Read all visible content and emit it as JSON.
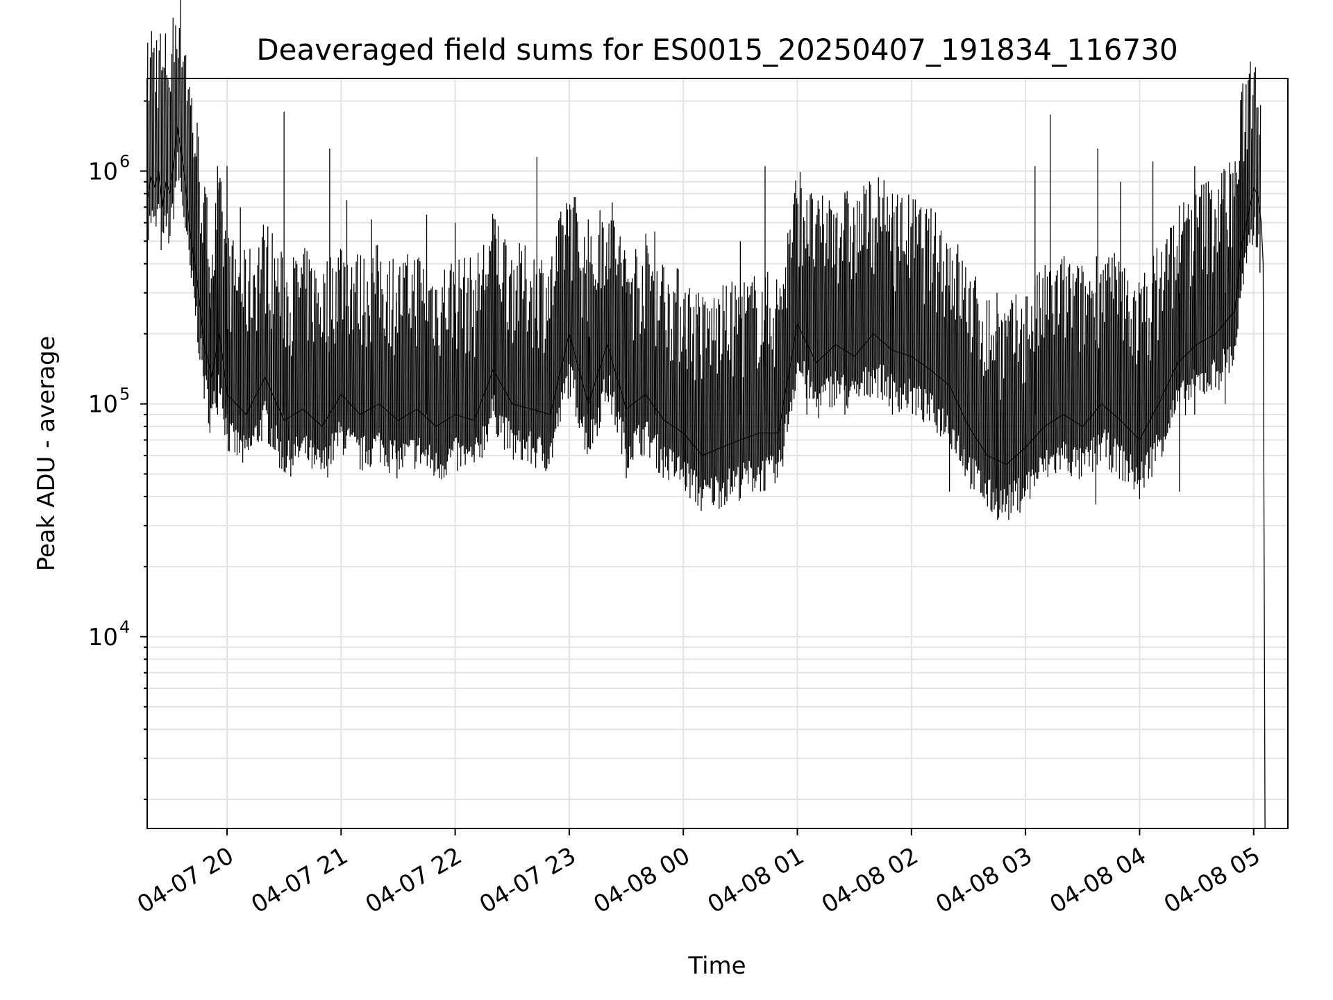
{
  "chart_data": {
    "type": "line",
    "title": "Deaveraged field sums for ES0015_20250407_191834_116730",
    "xlabel": "Time",
    "ylabel": "Peak ADU - average",
    "yscale": "log",
    "ylim": [
      1500,
      2500000
    ],
    "xlim": [
      "2025-04-07 19:18",
      "2025-04-08 05:18"
    ],
    "x_ticks": [
      {
        "value": "2025-04-07 20:00",
        "label": "04-07 20"
      },
      {
        "value": "2025-04-07 21:00",
        "label": "04-07 21"
      },
      {
        "value": "2025-04-07 22:00",
        "label": "04-07 22"
      },
      {
        "value": "2025-04-07 23:00",
        "label": "04-07 23"
      },
      {
        "value": "2025-04-08 00:00",
        "label": "04-08 00"
      },
      {
        "value": "2025-04-08 01:00",
        "label": "04-08 01"
      },
      {
        "value": "2025-04-08 02:00",
        "label": "04-08 02"
      },
      {
        "value": "2025-04-08 03:00",
        "label": "04-08 03"
      },
      {
        "value": "2025-04-08 04:00",
        "label": "04-08 04"
      },
      {
        "value": "2025-04-08 05:00",
        "label": "04-08 05"
      }
    ],
    "y_ticks": [
      {
        "value": 10000,
        "base": "10",
        "exp": "4"
      },
      {
        "value": 100000,
        "base": "10",
        "exp": "5"
      },
      {
        "value": 1000000,
        "base": "10",
        "exp": "6"
      }
    ],
    "grid": true,
    "legend": false,
    "line_color": "#000000",
    "series": [
      {
        "x": [
          "2025-04-07 19:18",
          "2025-04-07 19:20",
          "2025-04-07 19:22",
          "2025-04-07 19:24",
          "2025-04-07 19:26",
          "2025-04-07 19:28",
          "2025-04-07 19:30",
          "2025-04-07 19:32",
          "2025-04-07 19:34",
          "2025-04-07 19:36",
          "2025-04-07 19:38",
          "2025-04-07 19:40",
          "2025-04-07 19:44",
          "2025-04-07 19:48",
          "2025-04-07 19:52",
          "2025-04-07 19:56",
          "2025-04-07 20:00",
          "2025-04-07 20:10",
          "2025-04-07 20:20",
          "2025-04-07 20:30",
          "2025-04-07 20:40",
          "2025-04-07 20:50",
          "2025-04-07 21:00",
          "2025-04-07 21:10",
          "2025-04-07 21:20",
          "2025-04-07 21:30",
          "2025-04-07 21:40",
          "2025-04-07 21:50",
          "2025-04-07 22:00",
          "2025-04-07 22:10",
          "2025-04-07 22:20",
          "2025-04-07 22:30",
          "2025-04-07 22:40",
          "2025-04-07 22:50",
          "2025-04-07 23:00",
          "2025-04-07 23:10",
          "2025-04-07 23:20",
          "2025-04-07 23:30",
          "2025-04-07 23:40",
          "2025-04-07 23:50",
          "2025-04-08 00:00",
          "2025-04-08 00:10",
          "2025-04-08 00:20",
          "2025-04-08 00:30",
          "2025-04-08 00:40",
          "2025-04-08 00:50",
          "2025-04-08 01:00",
          "2025-04-08 01:10",
          "2025-04-08 01:20",
          "2025-04-08 01:30",
          "2025-04-08 01:40",
          "2025-04-08 01:50",
          "2025-04-08 02:00",
          "2025-04-08 02:10",
          "2025-04-08 02:20",
          "2025-04-08 02:30",
          "2025-04-08 02:40",
          "2025-04-08 02:50",
          "2025-04-08 03:00",
          "2025-04-08 03:10",
          "2025-04-08 03:20",
          "2025-04-08 03:30",
          "2025-04-08 03:40",
          "2025-04-08 03:50",
          "2025-04-08 04:00",
          "2025-04-08 04:10",
          "2025-04-08 04:20",
          "2025-04-08 04:30",
          "2025-04-08 04:40",
          "2025-04-08 04:50",
          "2025-04-08 04:54",
          "2025-04-08 04:58",
          "2025-04-08 05:00",
          "2025-04-08 05:02",
          "2025-04-08 05:04",
          "2025-04-08 05:05",
          "2025-04-08 05:06"
        ],
        "y": [
          750000,
          950000,
          850000,
          1000000,
          700000,
          900000,
          800000,
          1100000,
          1550000,
          1200000,
          900000,
          600000,
          350000,
          180000,
          130000,
          200000,
          110000,
          90000,
          130000,
          85000,
          95000,
          80000,
          110000,
          90000,
          100000,
          85000,
          95000,
          80000,
          90000,
          85000,
          140000,
          100000,
          95000,
          90000,
          200000,
          100000,
          180000,
          95000,
          110000,
          85000,
          75000,
          60000,
          65000,
          70000,
          75000,
          75000,
          220000,
          150000,
          180000,
          160000,
          200000,
          170000,
          160000,
          140000,
          120000,
          80000,
          60000,
          55000,
          65000,
          80000,
          90000,
          80000,
          100000,
          85000,
          70000,
          100000,
          150000,
          180000,
          200000,
          250000,
          500000,
          700000,
          850000,
          800000,
          600000,
          400000,
          1500
        ]
      }
    ],
    "spikes": [
      {
        "x": "2025-04-07 19:51",
        "y": 75000
      },
      {
        "x": "2025-04-07 19:55",
        "y": 1050000
      },
      {
        "x": "2025-04-07 20:00",
        "y": 1050000
      },
      {
        "x": "2025-04-07 20:07",
        "y": 700000
      },
      {
        "x": "2025-04-07 20:30",
        "y": 1800000
      },
      {
        "x": "2025-04-07 20:46",
        "y": 55000
      },
      {
        "x": "2025-04-07 20:54",
        "y": 1250000
      },
      {
        "x": "2025-04-07 21:03",
        "y": 750000
      },
      {
        "x": "2025-04-07 21:16",
        "y": 620000
      },
      {
        "x": "2025-04-07 21:29",
        "y": 58000
      },
      {
        "x": "2025-04-07 21:45",
        "y": 650000
      },
      {
        "x": "2025-04-07 22:00",
        "y": 600000
      },
      {
        "x": "2025-04-07 22:21",
        "y": 620000
      },
      {
        "x": "2025-04-07 22:43",
        "y": 1150000
      },
      {
        "x": "2025-04-07 23:10",
        "y": 620000
      },
      {
        "x": "2025-04-07 23:30",
        "y": 48000
      },
      {
        "x": "2025-04-07 23:45",
        "y": 550000
      },
      {
        "x": "2025-04-08 00:01",
        "y": 45000
      },
      {
        "x": "2025-04-08 00:08",
        "y": 42000
      },
      {
        "x": "2025-04-08 00:30",
        "y": 500000
      },
      {
        "x": "2025-04-08 00:43",
        "y": 1050000
      },
      {
        "x": "2025-04-08 01:05",
        "y": 750000
      },
      {
        "x": "2025-04-08 01:25",
        "y": 800000
      },
      {
        "x": "2025-04-08 01:50",
        "y": 800000
      },
      {
        "x": "2025-04-08 02:20",
        "y": 42000
      },
      {
        "x": "2025-04-08 02:45",
        "y": 38000
      },
      {
        "x": "2025-04-08 03:05",
        "y": 1050000
      },
      {
        "x": "2025-04-08 03:13",
        "y": 1750000
      },
      {
        "x": "2025-04-08 03:37",
        "y": 37000
      },
      {
        "x": "2025-04-08 03:38",
        "y": 1250000
      },
      {
        "x": "2025-04-08 03:50",
        "y": 900000
      },
      {
        "x": "2025-04-08 04:00",
        "y": 39000
      },
      {
        "x": "2025-04-08 04:07",
        "y": 1100000
      },
      {
        "x": "2025-04-08 04:21",
        "y": 42000
      },
      {
        "x": "2025-04-08 04:29",
        "y": 1050000
      },
      {
        "x": "2025-04-08 04:45",
        "y": 100000
      }
    ]
  }
}
